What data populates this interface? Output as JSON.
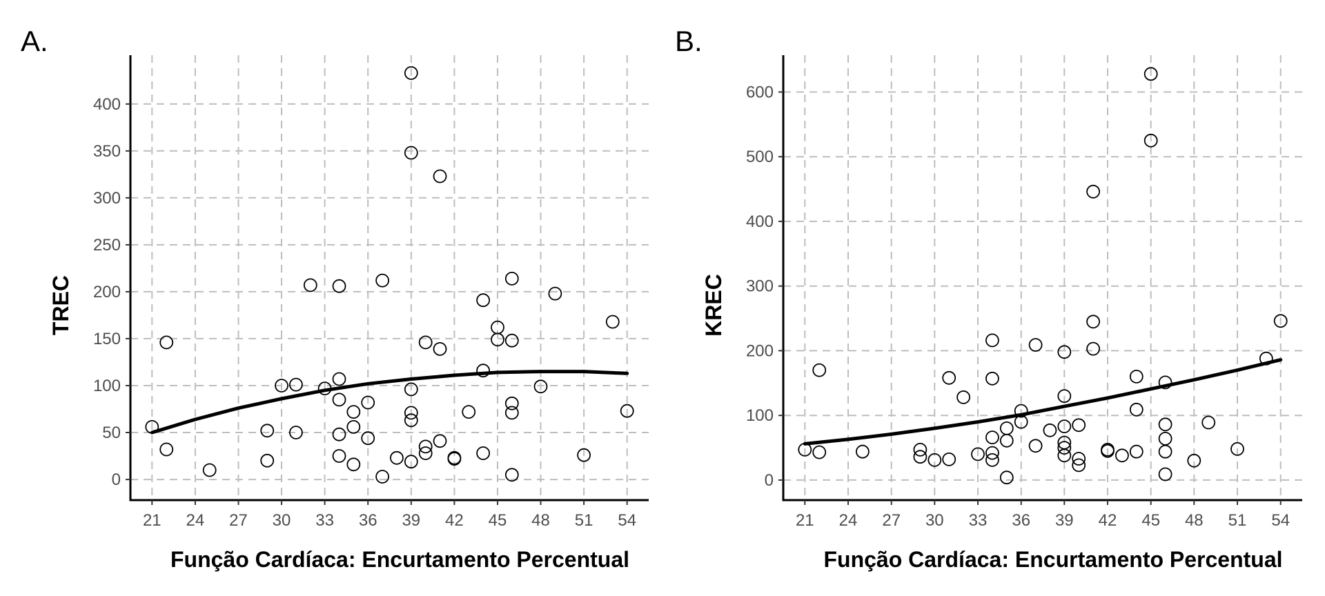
{
  "chart_data": [
    {
      "type": "scatter",
      "panel_label": "A.",
      "xlabel": "Função Cardíaca: Encurtamento Percentual",
      "ylabel": "TREC",
      "x_ticks": [
        21,
        24,
        27,
        30,
        33,
        36,
        39,
        42,
        45,
        48,
        51,
        54
      ],
      "y_ticks": [
        0,
        50,
        100,
        150,
        200,
        250,
        300,
        350,
        400
      ],
      "xlim": [
        19.5,
        55.5
      ],
      "ylim": [
        -22,
        452
      ],
      "grid": true,
      "points": [
        [
          21,
          56
        ],
        [
          22,
          146
        ],
        [
          22,
          32
        ],
        [
          25,
          10
        ],
        [
          29,
          52
        ],
        [
          29,
          20
        ],
        [
          30,
          100
        ],
        [
          31,
          101
        ],
        [
          31,
          50
        ],
        [
          32,
          207
        ],
        [
          33,
          97
        ],
        [
          34,
          206
        ],
        [
          34,
          107
        ],
        [
          34,
          85
        ],
        [
          34,
          48
        ],
        [
          34,
          25
        ],
        [
          35,
          72
        ],
        [
          35,
          56
        ],
        [
          35,
          16
        ],
        [
          36,
          82
        ],
        [
          36,
          44
        ],
        [
          37,
          212
        ],
        [
          37,
          3
        ],
        [
          38,
          23
        ],
        [
          39,
          433
        ],
        [
          39,
          348
        ],
        [
          39,
          96
        ],
        [
          39,
          71
        ],
        [
          39,
          63
        ],
        [
          39,
          19
        ],
        [
          40,
          146
        ],
        [
          40,
          35
        ],
        [
          40,
          28
        ],
        [
          41,
          323
        ],
        [
          41,
          139
        ],
        [
          41,
          41
        ],
        [
          42,
          23
        ],
        [
          42,
          22
        ],
        [
          43,
          72
        ],
        [
          44,
          191
        ],
        [
          44,
          116
        ],
        [
          44,
          28
        ],
        [
          45,
          162
        ],
        [
          45,
          149
        ],
        [
          46,
          214
        ],
        [
          46,
          148
        ],
        [
          46,
          81
        ],
        [
          46,
          71
        ],
        [
          46,
          5
        ],
        [
          48,
          99
        ],
        [
          49,
          198
        ],
        [
          51,
          26
        ],
        [
          53,
          168
        ],
        [
          54,
          73
        ]
      ],
      "fit_curve": {
        "x": [
          21,
          24,
          27,
          30,
          33,
          36,
          39,
          42,
          45,
          48,
          51,
          54
        ],
        "y": [
          50,
          64,
          76,
          86,
          95,
          102,
          107,
          111,
          114,
          115,
          115,
          113
        ]
      }
    },
    {
      "type": "scatter",
      "panel_label": "B.",
      "xlabel": "Função Cardíaca: Encurtamento Percentual",
      "ylabel": "KREC",
      "x_ticks": [
        21,
        24,
        27,
        30,
        33,
        36,
        39,
        42,
        45,
        48,
        51,
        54
      ],
      "y_ticks": [
        0,
        100,
        200,
        300,
        400,
        500,
        600
      ],
      "xlim": [
        19.5,
        55.5
      ],
      "ylim": [
        -31,
        657
      ],
      "grid": true,
      "points": [
        [
          21,
          47
        ],
        [
          22,
          43
        ],
        [
          22,
          170
        ],
        [
          25,
          44
        ],
        [
          29,
          47
        ],
        [
          29,
          36
        ],
        [
          30,
          31
        ],
        [
          31,
          32
        ],
        [
          31,
          158
        ],
        [
          32,
          128
        ],
        [
          33,
          40
        ],
        [
          34,
          216
        ],
        [
          34,
          157
        ],
        [
          34,
          66
        ],
        [
          34,
          42
        ],
        [
          34,
          31
        ],
        [
          35,
          80
        ],
        [
          35,
          61
        ],
        [
          35,
          4
        ],
        [
          36,
          107
        ],
        [
          36,
          90
        ],
        [
          37,
          209
        ],
        [
          37,
          53
        ],
        [
          38,
          77
        ],
        [
          39,
          198
        ],
        [
          39,
          130
        ],
        [
          39,
          83
        ],
        [
          39,
          58
        ],
        [
          39,
          50
        ],
        [
          39,
          38
        ],
        [
          40,
          85
        ],
        [
          40,
          33
        ],
        [
          40,
          23
        ],
        [
          41,
          446
        ],
        [
          41,
          245
        ],
        [
          41,
          203
        ],
        [
          42,
          47
        ],
        [
          42,
          45
        ],
        [
          43,
          38
        ],
        [
          44,
          160
        ],
        [
          44,
          109
        ],
        [
          44,
          44
        ],
        [
          45,
          628
        ],
        [
          45,
          525
        ],
        [
          46,
          151
        ],
        [
          46,
          86
        ],
        [
          46,
          64
        ],
        [
          46,
          44
        ],
        [
          46,
          9
        ],
        [
          48,
          30
        ],
        [
          49,
          89
        ],
        [
          51,
          48
        ],
        [
          53,
          188
        ],
        [
          54,
          246
        ]
      ],
      "fit_curve": {
        "x": [
          21,
          24,
          27,
          30,
          33,
          36,
          39,
          42,
          45,
          48,
          51,
          54
        ],
        "y": [
          56,
          63,
          71,
          80,
          90,
          101,
          114,
          127,
          141,
          155,
          170,
          186
        ]
      }
    }
  ]
}
